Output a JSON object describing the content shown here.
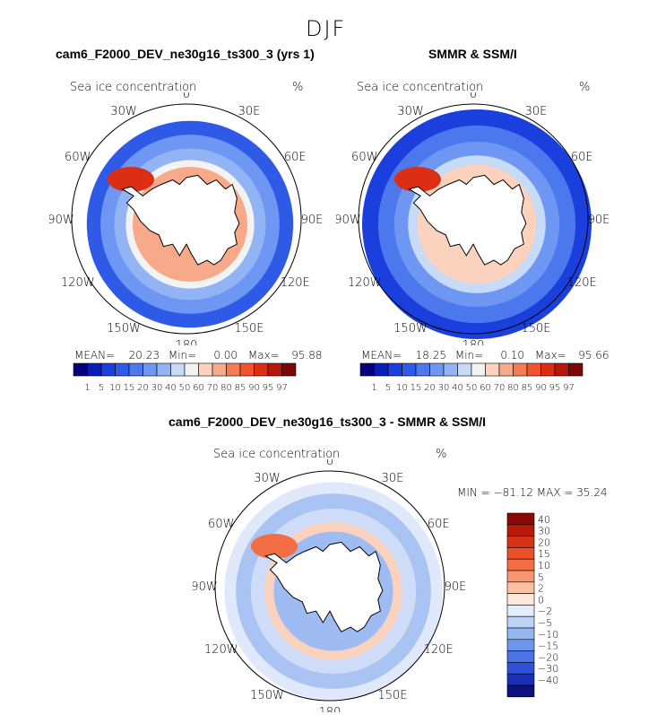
{
  "page_title": "DJF",
  "panel_left": {
    "title": "cam6_F2000_DEV_ne30g16_ts300_3 (yrs 1)",
    "subtitle": "Sea ice concentration",
    "units": "%",
    "stats": {
      "mean_label": "MEAN=",
      "mean": "20.23",
      "min_label": "Min=",
      "min": "0.00",
      "max_label": "Max=",
      "max": "95.88"
    }
  },
  "panel_right": {
    "title": "SMMR & SSM/I",
    "subtitle": "Sea ice concentration",
    "units": "%",
    "stats": {
      "mean_label": "MEAN=",
      "mean": "18.25",
      "min_label": "Min=",
      "min": "0.10",
      "max_label": "Max=",
      "max": "95.66"
    }
  },
  "panel_diff": {
    "title": "cam6_F2000_DEV_ne30g16_ts300_3 - SMMR & SSM/I",
    "subtitle": "Sea ice concentration",
    "units": "%",
    "minmax": "MIN = −81.12 MAX =  35.24"
  },
  "chart_data": [
    {
      "type": "heatmap",
      "title": "cam6_F2000_DEV_ne30g16_ts300_3 (yrs 1)",
      "projection": "south-polar-stereographic",
      "longitude_labels": [
        "0",
        "30E",
        "60E",
        "90E",
        "120E",
        "150E",
        "180",
        "150W",
        "120W",
        "90W",
        "60W",
        "30W"
      ],
      "colorbar_levels": [
        "1",
        "5",
        "10",
        "15",
        "20",
        "30",
        "40",
        "50",
        "60",
        "70",
        "80",
        "85",
        "90",
        "95",
        "97"
      ],
      "colors": [
        "#08007a",
        "#0a1fb8",
        "#1a3fdc",
        "#2f5ae8",
        "#4c78ee",
        "#6d97f2",
        "#92b4f5",
        "#c5dbf8",
        "#f3f3f3",
        "#fad2bd",
        "#f7a98a",
        "#f57d55",
        "#ef5330",
        "#dc2e14",
        "#b9150a",
        "#7d0606"
      ],
      "mean": 20.23,
      "min": 0.0,
      "max": 95.88
    },
    {
      "type": "heatmap",
      "title": "SMMR & SSM/I",
      "projection": "south-polar-stereographic",
      "longitude_labels": [
        "0",
        "30E",
        "60E",
        "90E",
        "120E",
        "150E",
        "180",
        "150W",
        "120W",
        "90W",
        "60W",
        "30W"
      ],
      "colorbar_levels": [
        "1",
        "5",
        "10",
        "15",
        "20",
        "30",
        "40",
        "50",
        "60",
        "70",
        "80",
        "85",
        "90",
        "95",
        "97"
      ],
      "colors": [
        "#08007a",
        "#0a1fb8",
        "#1a3fdc",
        "#2f5ae8",
        "#4c78ee",
        "#6d97f2",
        "#92b4f5",
        "#c5dbf8",
        "#f3f3f3",
        "#fad2bd",
        "#f7a98a",
        "#f57d55",
        "#ef5330",
        "#dc2e14",
        "#b9150a",
        "#7d0606"
      ],
      "mean": 18.25,
      "min": 0.1,
      "max": 95.66
    },
    {
      "type": "heatmap",
      "title": "cam6_F2000_DEV_ne30g16_ts300_3 - SMMR & SSM/I",
      "projection": "south-polar-stereographic",
      "longitude_labels": [
        "0",
        "30E",
        "60E",
        "90E",
        "120E",
        "150E",
        "180",
        "150W",
        "120W",
        "90W",
        "60W",
        "30W"
      ],
      "colorbar_levels": [
        "40",
        "30",
        "20",
        "15",
        "10",
        "5",
        "2",
        "0",
        "−2",
        "−5",
        "−10",
        "−15",
        "−20",
        "−30",
        "−40"
      ],
      "colors": [
        "#8c0a05",
        "#b81a0a",
        "#d63216",
        "#ec5028",
        "#f46e45",
        "#f7956e",
        "#fbc0a0",
        "#fde8dc",
        "#e3eefb",
        "#bcd3f6",
        "#94b6f1",
        "#6e96ec",
        "#4a74e4",
        "#2f52d6",
        "#1a2fb4",
        "#0c1180"
      ],
      "min": -81.12,
      "max": 35.24
    }
  ]
}
